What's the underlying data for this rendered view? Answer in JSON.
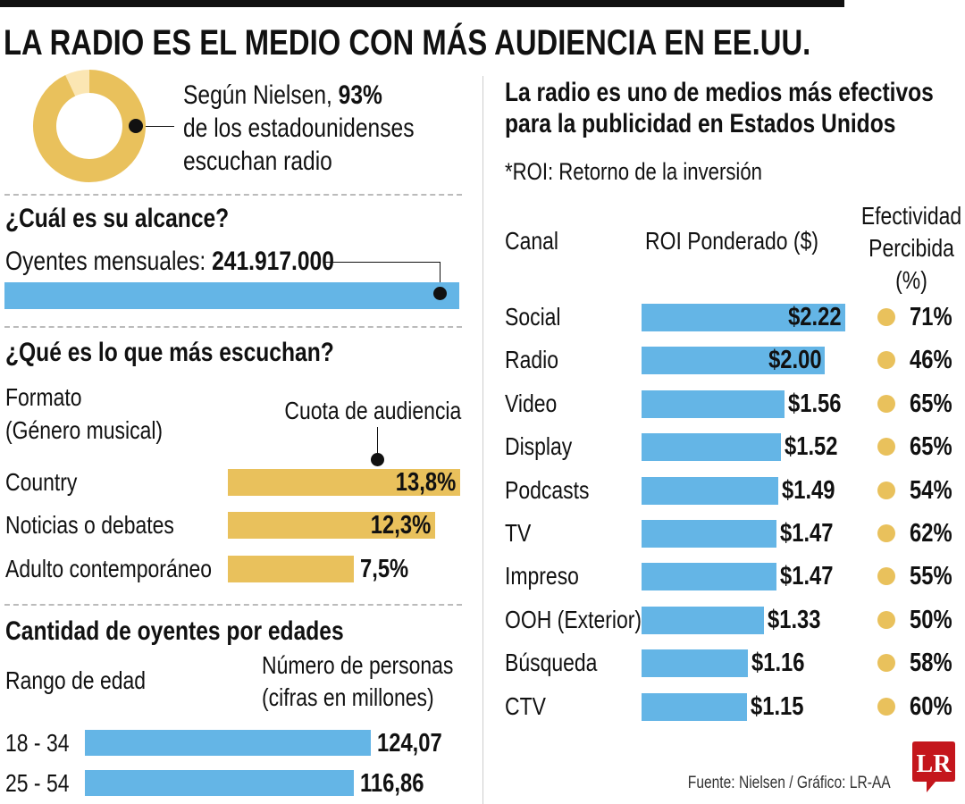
{
  "title": "LA RADIO ES EL MEDIO CON MÁS AUDIENCIA EN EE.UU.",
  "colors": {
    "blue": "#64b5e6",
    "gold": "#e9c15c",
    "gold_light": "#fbe6b3",
    "logo_red": "#c4161c"
  },
  "donut": {
    "percent": 93,
    "line1_pre": "Según Nielsen, ",
    "line1_bold": "93%",
    "line2": "de los estadounidenses",
    "line3": "escuchan radio"
  },
  "reach": {
    "heading": "¿Cuál es su alcance?",
    "label": "Oyentes mensuales: ",
    "value": "241.917.000"
  },
  "formats": {
    "heading": "¿Qué es lo que más escuchan?",
    "col1_line1": "Formato",
    "col1_line2": "(Género musical)",
    "col2": "Cuota de audiencia",
    "items": [
      {
        "label": "Country",
        "value": 13.8,
        "text": "13,8%"
      },
      {
        "label": "Noticias o debates",
        "value": 12.3,
        "text": "12,3%"
      },
      {
        "label": "Adulto contemporáneo",
        "value": 7.5,
        "text": "7,5%"
      }
    ]
  },
  "ages": {
    "heading": "Cantidad de oyentes por edades",
    "col1": "Rango de edad",
    "col2_line1": "Número de personas",
    "col2_line2": "(cifras en millones)",
    "items": [
      {
        "label": "18 - 34",
        "value": 124.07,
        "text": "124,07"
      },
      {
        "label": "25 - 54",
        "value": 116.86,
        "text": "116,86"
      }
    ]
  },
  "roi": {
    "heading_line1": "La radio es uno de medios más efectivos",
    "heading_line2": "para la publicidad en Estados Unidos",
    "note": "*ROI: Retorno de la inversión",
    "col_canal": "Canal",
    "col_roi": "ROI Ponderado ($)",
    "col_eff_line1": "Efectividad",
    "col_eff_line2": "Percibida",
    "col_eff_line3": "(%)"
  },
  "chart_data": {
    "type": "bar",
    "categories": [
      "Social",
      "Radio",
      "Video",
      "Display",
      "Podcasts",
      "TV",
      "Impreso",
      "OOH (Exterior)",
      "Búsqueda",
      "CTV"
    ],
    "series": [
      {
        "name": "ROI Ponderado ($)",
        "values": [
          2.22,
          2.0,
          1.56,
          1.52,
          1.49,
          1.47,
          1.47,
          1.33,
          1.16,
          1.15
        ],
        "labels": [
          "$2.22",
          "$2.00",
          "$1.56",
          "$1.52",
          "$1.49",
          "$1.47",
          "$1.47",
          "$1.33",
          "$1.16",
          "$1.15"
        ]
      },
      {
        "name": "Efectividad Percibida (%)",
        "values": [
          71,
          46,
          65,
          65,
          54,
          62,
          55,
          50,
          58,
          60
        ],
        "labels": [
          "71%",
          "46%",
          "65%",
          "65%",
          "54%",
          "62%",
          "55%",
          "50%",
          "58%",
          "60%"
        ]
      }
    ]
  },
  "source": "Fuente: Nielsen / Gráfico: LR-AA",
  "logo": "LR"
}
